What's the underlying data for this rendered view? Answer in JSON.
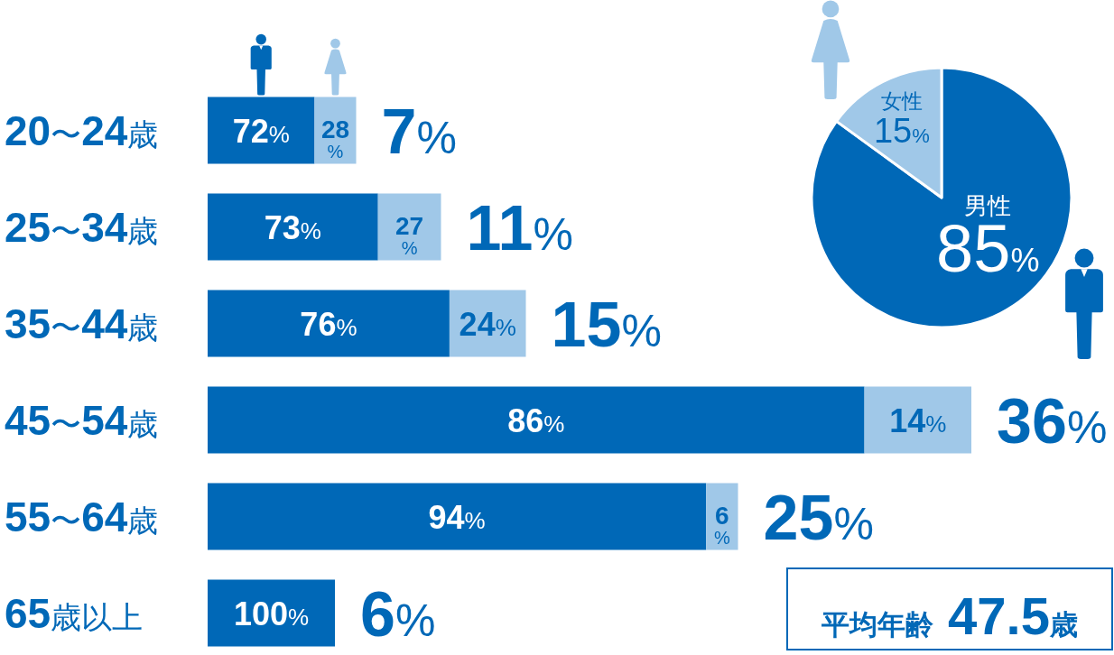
{
  "chart_data": [
    {
      "type": "bar",
      "orientation": "horizontal",
      "stacked": true,
      "categories": [
        "20〜24歳"
      ],
      "series": [
        {
          "color": "#0068b7",
          "values": [
            72
          ],
          "value_labels": [
            "72%"
          ]
        },
        {
          "color": "#a0c8e8",
          "values": [
            28
          ],
          "value_labels": [
            "28%"
          ]
        }
      ],
      "annotations": [
        "7%"
      ],
      "tick_labels": "y"
    },
    {
      "type": "bar",
      "orientation": "horizontal",
      "stacked": true,
      "categories": [
        "25〜34歳"
      ],
      "series": [
        {
          "color": "#0068b7",
          "values": [
            73
          ],
          "value_labels": [
            "73%"
          ]
        },
        {
          "color": "#a0c8e8",
          "values": [
            27
          ],
          "value_labels": [
            "27%"
          ]
        }
      ],
      "annotations": [
        "11%"
      ],
      "tick_labels": "y"
    },
    {
      "type": "bar",
      "orientation": "horizontal",
      "stacked": true,
      "categories": [
        "35〜44歳"
      ],
      "series": [
        {
          "color": "#0068b7",
          "values": [
            76
          ],
          "value_labels": [
            "76%"
          ]
        },
        {
          "color": "#a0c8e8",
          "values": [
            24
          ],
          "value_labels": [
            "24%"
          ]
        }
      ],
      "annotations": [
        "15%"
      ],
      "tick_labels": "y"
    },
    {
      "type": "bar",
      "orientation": "horizontal",
      "stacked": true,
      "categories": [
        "45〜54歳"
      ],
      "series": [
        {
          "color": "#0068b7",
          "values": [
            86
          ],
          "value_labels": [
            "86%"
          ]
        },
        {
          "color": "#a0c8e8",
          "values": [
            14
          ],
          "value_labels": [
            "14%"
          ]
        }
      ],
      "annotations": [
        "36%"
      ],
      "tick_labels": "y"
    },
    {
      "type": "bar",
      "orientation": "horizontal",
      "stacked": true,
      "categories": [
        "55〜64歳"
      ],
      "series": [
        {
          "color": "#0068b7",
          "values": [
            94
          ],
          "value_labels": [
            "94%"
          ]
        },
        {
          "color": "#a0c8e8",
          "values": [
            6
          ],
          "value_labels": [
            "6%"
          ]
        }
      ],
      "annotations": [
        "25%"
      ],
      "tick_labels": "y"
    },
    {
      "type": "bar",
      "orientation": "horizontal",
      "stacked": true,
      "categories": [
        "65歳以上"
      ],
      "series": [
        {
          "color": "#0068b7",
          "values": [
            100
          ],
          "value_labels": [
            "100%"
          ]
        }
      ],
      "annotations": [
        "6%"
      ],
      "tick_labels": "y"
    },
    {
      "type": "pie",
      "categories": [
        "男性",
        "女性"
      ],
      "values": [
        85,
        15
      ],
      "colors": [
        "#0068b7",
        "#a0c8e8"
      ],
      "value_labels": [
        "85%",
        "15%"
      ]
    },
    {
      "type": "other",
      "annotations": [
        "平均年齢47.5歳"
      ]
    }
  ]
}
